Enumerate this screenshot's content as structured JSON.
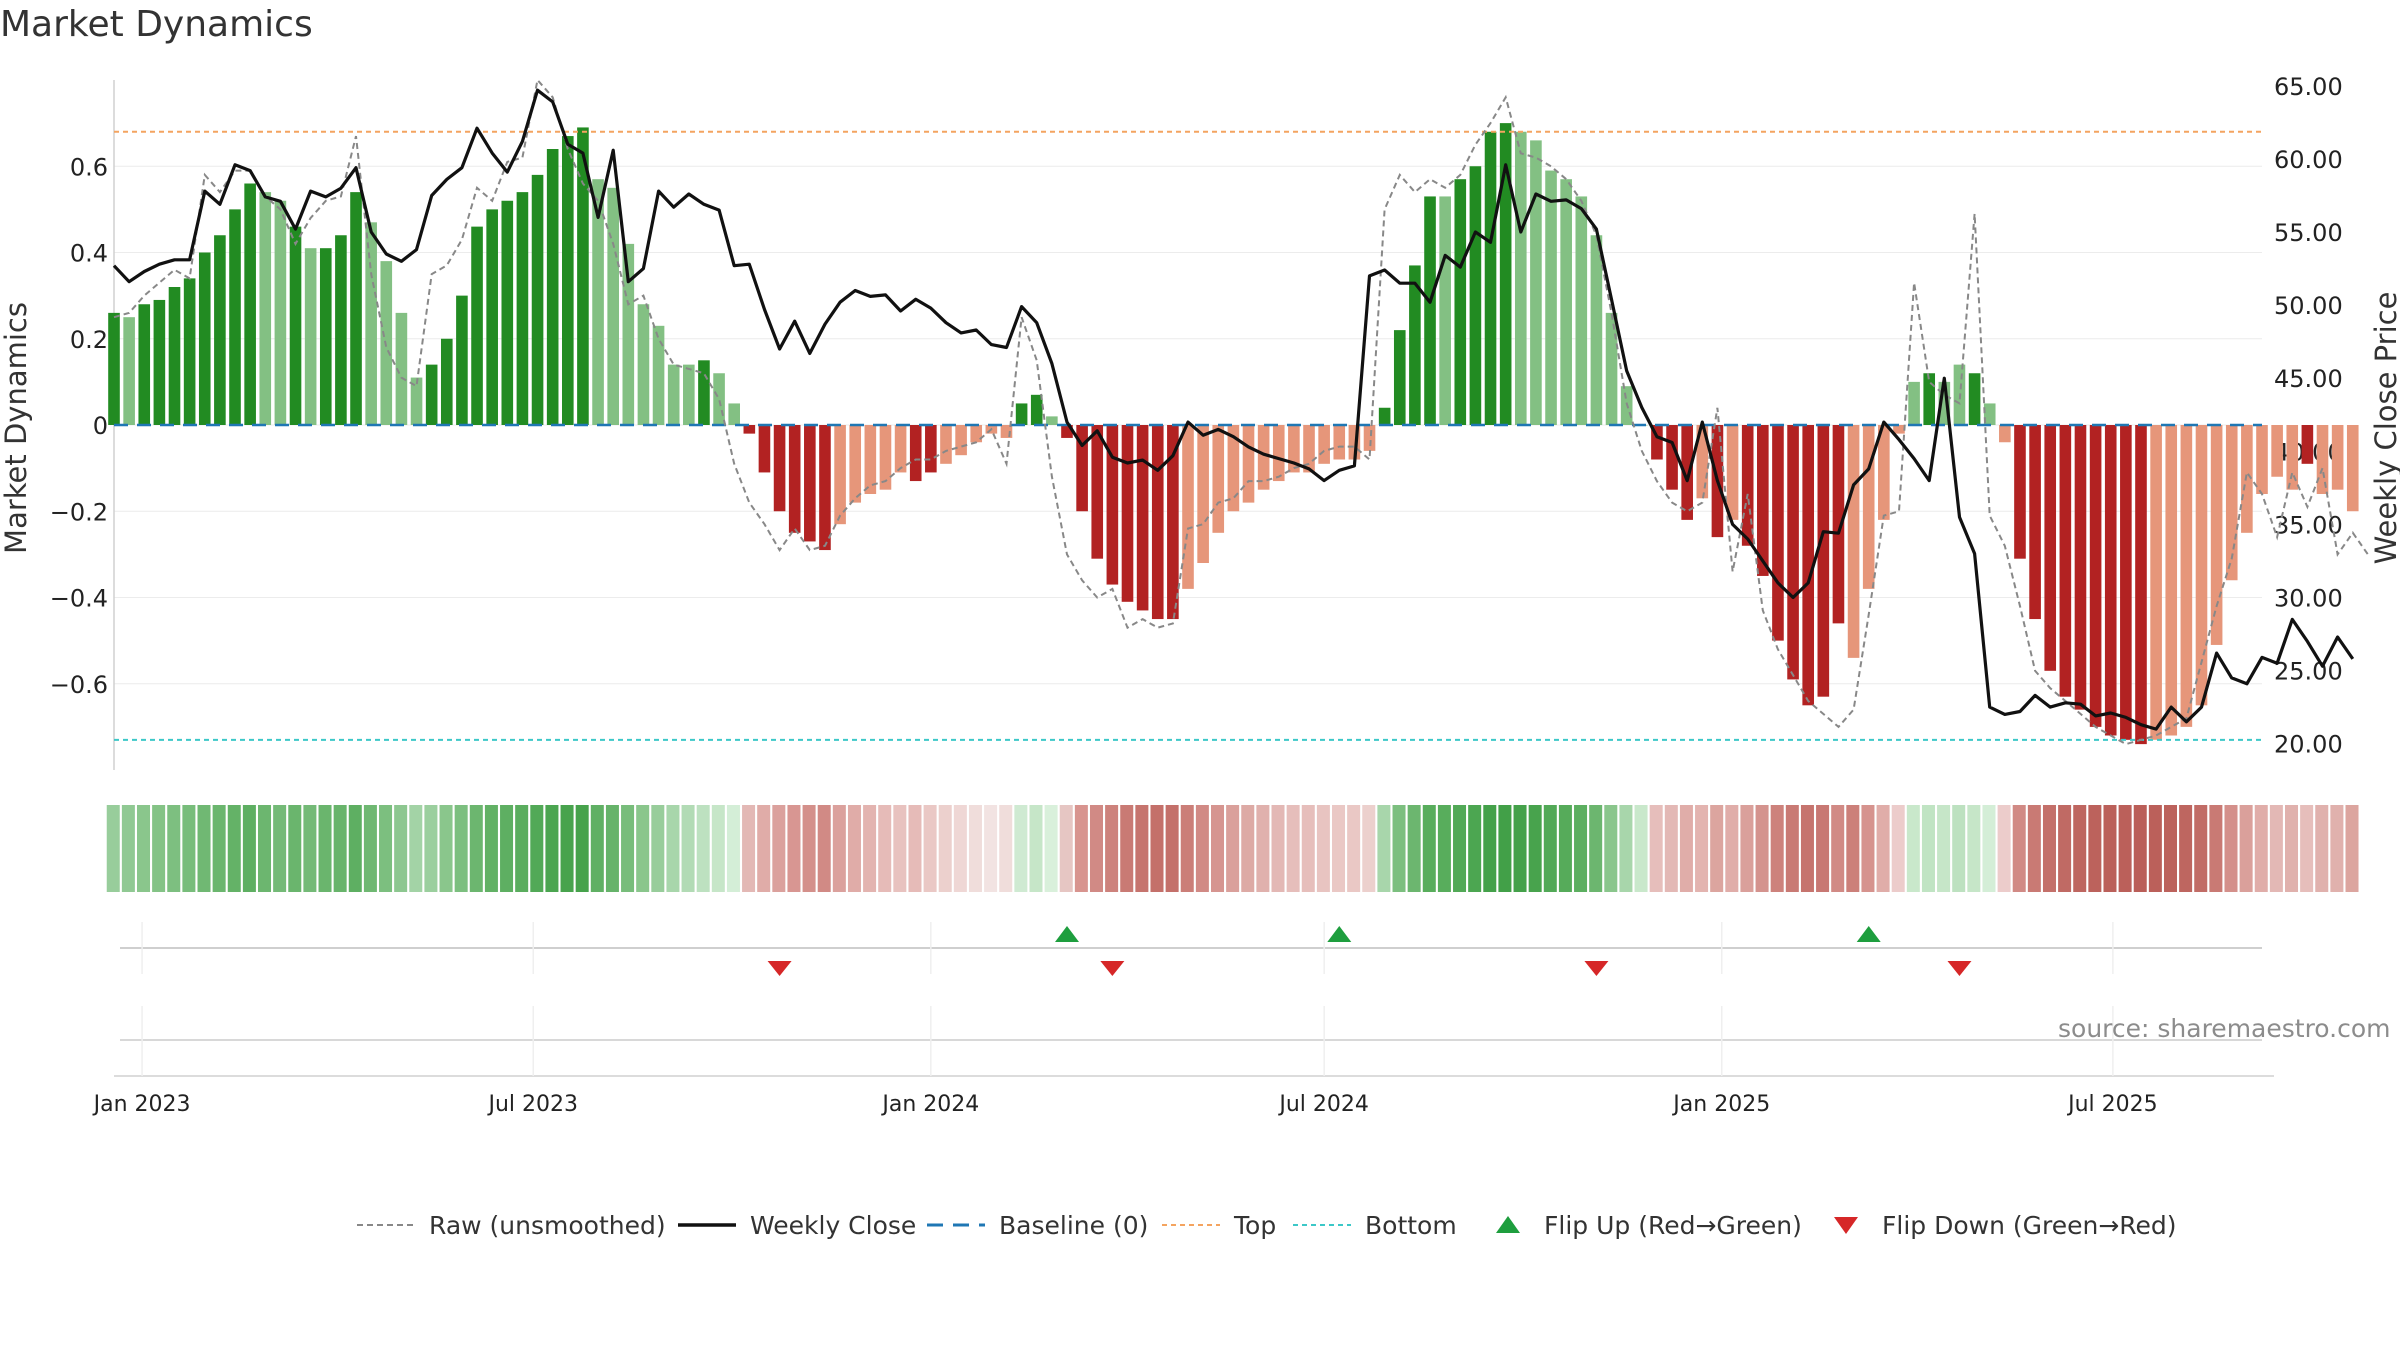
{
  "title": "Market Dynamics",
  "source": "source: sharemaestro.com",
  "colors": {
    "green_strong": "#228b22",
    "green_soft": "#83c083",
    "red_strong": "#b22222",
    "red_soft": "#e6967a",
    "close": "#111111",
    "raw": "#888888",
    "baseline": "#1f77b4",
    "top": "#f4a460",
    "bottom": "#3cc8c8",
    "flip_up": "#1e9e3e",
    "flip_down": "#d62728"
  },
  "chart_data": {
    "type": "bar",
    "title": "Market Dynamics",
    "ylabel": "Market Dynamics",
    "y2label": "Weekly Close Price",
    "ylim": [
      -0.8,
      0.8
    ],
    "y2lim": [
      18.2,
      65.4
    ],
    "yticks": [
      {
        "v": 0.6,
        "label": "0.6"
      },
      {
        "v": 0.4,
        "label": "0.4"
      },
      {
        "v": 0.2,
        "label": "0.2"
      },
      {
        "v": 0,
        "label": "0"
      },
      {
        "v": -0.2,
        "label": "−0.2"
      },
      {
        "v": -0.4,
        "label": "−0.4"
      },
      {
        "v": -0.6,
        "label": "−0.6"
      }
    ],
    "y2ticks": [
      {
        "v": 65,
        "label": "65.00"
      },
      {
        "v": 60,
        "label": "60.00"
      },
      {
        "v": 55,
        "label": "55.00"
      },
      {
        "v": 50,
        "label": "50.00"
      },
      {
        "v": 45,
        "label": "45.00"
      },
      {
        "v": 40,
        "label": "40.00"
      },
      {
        "v": 35,
        "label": "35.00"
      },
      {
        "v": 30,
        "label": "30.00"
      },
      {
        "v": 25,
        "label": "25.00"
      },
      {
        "v": 20,
        "label": "20.00"
      }
    ],
    "x_start": "2022-12-19",
    "x_end": "2025-09-08",
    "xticks": [
      {
        "date": "2023-01-01",
        "label": "Jan 2023"
      },
      {
        "date": "2023-07-01",
        "label": "Jul 2023"
      },
      {
        "date": "2024-01-01",
        "label": "Jan 2024"
      },
      {
        "date": "2024-07-01",
        "label": "Jul 2024"
      },
      {
        "date": "2025-01-01",
        "label": "Jan 2025"
      },
      {
        "date": "2025-07-01",
        "label": "Jul 2025"
      }
    ],
    "dynamics": [
      0.26,
      0.25,
      0.28,
      0.29,
      0.32,
      0.34,
      0.4,
      0.44,
      0.5,
      0.56,
      0.54,
      0.52,
      0.46,
      0.41,
      0.41,
      0.44,
      0.54,
      0.47,
      0.38,
      0.26,
      0.11,
      0.14,
      0.2,
      0.3,
      0.46,
      0.5,
      0.52,
      0.54,
      0.58,
      0.64,
      0.67,
      0.69,
      0.57,
      0.55,
      0.42,
      0.28,
      0.23,
      0.14,
      0.14,
      0.15,
      0.12,
      0.05,
      -0.02,
      -0.11,
      -0.2,
      -0.25,
      -0.27,
      -0.29,
      -0.23,
      -0.18,
      -0.16,
      -0.15,
      -0.11,
      -0.13,
      -0.11,
      -0.09,
      -0.07,
      -0.04,
      -0.02,
      -0.03,
      0.05,
      0.07,
      0.02,
      -0.03,
      -0.2,
      -0.31,
      -0.37,
      -0.41,
      -0.43,
      -0.45,
      -0.45,
      -0.38,
      -0.32,
      -0.25,
      -0.2,
      -0.18,
      -0.15,
      -0.13,
      -0.11,
      -0.11,
      -0.09,
      -0.08,
      -0.08,
      -0.06,
      0.04,
      0.22,
      0.37,
      0.53,
      0.53,
      0.57,
      0.6,
      0.68,
      0.7,
      0.68,
      0.66,
      0.59,
      0.57,
      0.53,
      0.44,
      0.26,
      0.09,
      0.0,
      -0.08,
      -0.15,
      -0.22,
      -0.17,
      -0.26,
      -0.22,
      -0.28,
      -0.35,
      -0.5,
      -0.59,
      -0.65,
      -0.63,
      -0.46,
      -0.54,
      -0.38,
      -0.22,
      -0.02,
      0.1,
      0.12,
      0.1,
      0.14,
      0.12,
      0.05,
      -0.04,
      -0.31,
      -0.45,
      -0.57,
      -0.63,
      -0.66,
      -0.7,
      -0.72,
      -0.73,
      -0.74,
      -0.73,
      -0.72,
      -0.7,
      -0.65,
      -0.51,
      -0.36,
      -0.25,
      -0.16,
      -0.12,
      -0.15,
      -0.09,
      -0.16,
      -0.15,
      -0.2
    ],
    "bar_strength": [
      "s",
      "w",
      "s",
      "s",
      "s",
      "s",
      "s",
      "s",
      "s",
      "s",
      "w",
      "w",
      "s",
      "w",
      "s",
      "s",
      "s",
      "w",
      "w",
      "w",
      "w",
      "s",
      "s",
      "s",
      "s",
      "s",
      "s",
      "s",
      "s",
      "s",
      "s",
      "s",
      "w",
      "w",
      "w",
      "w",
      "w",
      "w",
      "w",
      "s",
      "w",
      "w",
      "s",
      "s",
      "s",
      "s",
      "s",
      "s",
      "w",
      "w",
      "w",
      "w",
      "w",
      "s",
      "s",
      "w",
      "w",
      "w",
      "w",
      "w",
      "s",
      "s",
      "w",
      "s",
      "s",
      "s",
      "s",
      "s",
      "s",
      "s",
      "s",
      "w",
      "w",
      "w",
      "w",
      "w",
      "w",
      "w",
      "w",
      "w",
      "w",
      "w",
      "w",
      "w",
      "s",
      "s",
      "s",
      "s",
      "w",
      "s",
      "s",
      "s",
      "s",
      "w",
      "w",
      "w",
      "w",
      "w",
      "w",
      "w",
      "w",
      "w",
      "s",
      "s",
      "s",
      "w",
      "s",
      "w",
      "s",
      "s",
      "s",
      "s",
      "s",
      "s",
      "s",
      "w",
      "w",
      "w",
      "w",
      "w",
      "s",
      "w",
      "w",
      "s",
      "w",
      "w",
      "s",
      "s",
      "s",
      "s",
      "s",
      "s",
      "s",
      "s",
      "s",
      "w",
      "w",
      "w",
      "w",
      "w",
      "w",
      "w",
      "w",
      "w",
      "w",
      "s",
      "w",
      "w",
      "w",
      "s"
    ],
    "weekly_close": [
      52.7,
      51.6,
      52.3,
      52.8,
      53.1,
      53.1,
      57.8,
      56.9,
      59.6,
      59.2,
      57.4,
      57.1,
      55.2,
      57.8,
      57.4,
      58.0,
      59.4,
      55.0,
      53.5,
      53.0,
      53.8,
      57.5,
      58.6,
      59.4,
      62.1,
      60.4,
      59.1,
      61.2,
      64.7,
      63.9,
      61.0,
      60.4,
      56.0,
      60.6,
      51.6,
      52.5,
      57.8,
      56.7,
      57.6,
      56.9,
      56.5,
      52.7,
      52.8,
      49.7,
      47.0,
      48.9,
      46.7,
      48.7,
      50.2,
      51.0,
      50.6,
      50.7,
      49.6,
      50.4,
      49.8,
      48.8,
      48.1,
      48.3,
      47.3,
      47.1,
      49.9,
      48.8,
      46.0,
      42.0,
      40.4,
      41.4,
      39.6,
      39.2,
      39.4,
      38.7,
      39.7,
      42.0,
      41.1,
      41.5,
      41.0,
      40.3,
      39.8,
      39.5,
      39.2,
      38.8,
      38.0,
      38.7,
      39.0,
      52.0,
      52.4,
      51.5,
      51.5,
      50.2,
      53.4,
      52.6,
      55.0,
      54.3,
      59.6,
      55.0,
      57.6,
      57.1,
      57.2,
      56.6,
      55.2,
      50.4,
      45.5,
      43.0,
      41.0,
      40.6,
      38.0,
      42.0,
      38.0,
      35.0,
      34.0,
      32.5,
      31.0,
      30.0,
      31.0,
      34.5,
      34.4,
      37.7,
      38.8,
      42.0,
      40.8,
      39.5,
      38.0,
      45.0,
      35.5,
      33.0,
      22.5,
      22.0,
      22.2,
      23.3,
      22.5,
      22.8,
      22.7,
      21.9,
      22.1,
      21.8,
      21.3,
      21.0,
      22.5,
      21.5,
      22.5,
      26.2,
      24.5,
      24.1,
      25.9,
      25.5,
      28.5,
      27.0,
      25.3,
      27.3,
      25.8
    ],
    "raw": [
      0.25,
      0.26,
      0.3,
      0.33,
      0.36,
      0.34,
      0.58,
      0.54,
      0.59,
      0.59,
      0.53,
      0.5,
      0.42,
      0.48,
      0.52,
      0.53,
      0.67,
      0.35,
      0.18,
      0.11,
      0.09,
      0.35,
      0.37,
      0.43,
      0.55,
      0.52,
      0.61,
      0.62,
      0.8,
      0.76,
      0.64,
      0.56,
      0.52,
      0.42,
      0.28,
      0.3,
      0.2,
      0.14,
      0.13,
      0.12,
      0.06,
      -0.09,
      -0.18,
      -0.23,
      -0.29,
      -0.24,
      -0.29,
      -0.28,
      -0.21,
      -0.17,
      -0.14,
      -0.13,
      -0.1,
      -0.08,
      -0.08,
      -0.06,
      -0.05,
      -0.04,
      -0.01,
      -0.09,
      0.25,
      0.15,
      -0.12,
      -0.3,
      -0.36,
      -0.4,
      -0.38,
      -0.47,
      -0.45,
      -0.47,
      -0.46,
      -0.24,
      -0.23,
      -0.18,
      -0.17,
      -0.13,
      -0.13,
      -0.12,
      -0.1,
      -0.09,
      -0.06,
      -0.05,
      -0.05,
      -0.08,
      0.5,
      0.58,
      0.54,
      0.57,
      0.55,
      0.58,
      0.65,
      0.7,
      0.76,
      0.63,
      0.62,
      0.6,
      0.57,
      0.52,
      0.44,
      0.26,
      0.05,
      -0.06,
      -0.13,
      -0.18,
      -0.2,
      -0.18,
      0.04,
      -0.34,
      -0.16,
      -0.43,
      -0.52,
      -0.58,
      -0.64,
      -0.67,
      -0.7,
      -0.66,
      -0.44,
      -0.21,
      -0.2,
      0.33,
      0.1,
      0.07,
      0.05,
      0.49,
      -0.21,
      -0.28,
      -0.42,
      -0.57,
      -0.61,
      -0.64,
      -0.67,
      -0.7,
      -0.72,
      -0.74,
      -0.73,
      -0.72,
      -0.7,
      -0.68,
      -0.55,
      -0.42,
      -0.31,
      -0.11,
      -0.16,
      -0.26,
      -0.11,
      -0.19,
      -0.1,
      -0.3,
      -0.25,
      -0.3
    ],
    "baseline": 0,
    "top_line": 0.68,
    "bottom_line": -0.73,
    "flip_up_dates": [
      "2024-03-04",
      "2024-07-08",
      "2025-03-10"
    ],
    "flip_down_dates": [
      "2023-10-23",
      "2024-03-25",
      "2024-11-04",
      "2025-04-21"
    ],
    "regime_colors": [
      "#98cd9b",
      "#90c993",
      "#8ac68c",
      "#84c386",
      "#7dbf80",
      "#78bd7b",
      "#70b873",
      "#6bb66e",
      "#64b267",
      "#5eaf62",
      "#6cb66f",
      "#74ba77",
      "#6ab56d",
      "#74ba77",
      "#6ab56d",
      "#68b46b",
      "#5eaf62",
      "#6fb872",
      "#7cbf7f",
      "#8dc790",
      "#a3d3a6",
      "#9bcf9e",
      "#8ac68c",
      "#7cbf7f",
      "#6cb66f",
      "#62b165",
      "#5eaf62",
      "#5aad5e",
      "#52a957",
      "#4ba550",
      "#48a34d",
      "#46a24b",
      "#60b064",
      "#66b36a",
      "#78bd7b",
      "#8ac68c",
      "#98cd9b",
      "#a8d6ab",
      "#b2dbb5",
      "#bde1c0",
      "#c6e6c8",
      "#d4eed7",
      "#e3b8b5",
      "#e0aca8",
      "#dba19d",
      "#d89692",
      "#d4908b",
      "#d18a85",
      "#dba19d",
      "#e0aca8",
      "#e3b4b0",
      "#e6bbb8",
      "#e8c2bf",
      "#e6bbb8",
      "#eac8c5",
      "#ecd0cd",
      "#efd7d5",
      "#f0dddb",
      "#f2e3e2",
      "#f0dddb",
      "#cfead2",
      "#c6e6c8",
      "#d9f0db",
      "#e6c6c3",
      "#d8948f",
      "#d18a85",
      "#cd827c",
      "#c97a74",
      "#c6746e",
      "#c4706a",
      "#c4706a",
      "#cb7e78",
      "#d18a85",
      "#d69590",
      "#daa09b",
      "#ddaaa5",
      "#e0b1ad",
      "#e3b8b5",
      "#e6bebb",
      "#e6bebb",
      "#e8c4c1",
      "#eac8c5",
      "#eac8c5",
      "#ecd0cd",
      "#a8d6ab",
      "#7cbf7f",
      "#6cb66f",
      "#58ad5c",
      "#58ad5c",
      "#52a957",
      "#4ca651",
      "#44a14a",
      "#42a048",
      "#44a14a",
      "#48a34d",
      "#52a957",
      "#56ab5a",
      "#5caf60",
      "#6cb66f",
      "#8ac68c",
      "#a8d6ab",
      "#c9e8cb",
      "#e6bebb",
      "#e3b8b5",
      "#e0ada9",
      "#e3b4b0",
      "#dca59f",
      "#e0ada9",
      "#daa09b",
      "#d4938e",
      "#cd827c",
      "#c97a74",
      "#c6746e",
      "#c87873",
      "#d18a85",
      "#cc807a",
      "#d6938e",
      "#e0ada9",
      "#eccccb",
      "#c9e8cb",
      "#c0e4c3",
      "#c6e6c8",
      "#bde1c0",
      "#c6e6c8",
      "#d4eed7",
      "#eccccb",
      "#d18a85",
      "#c97a74",
      "#c4706a",
      "#c06a64",
      "#be6660",
      "#bc625c",
      "#bb605a",
      "#bb605a",
      "#ba5e58",
      "#bb605a",
      "#bc625c",
      "#be6660",
      "#c16c66",
      "#c97a74",
      "#d4908b",
      "#daa09b",
      "#e0ada9",
      "#e3b8b5",
      "#e0b1ad",
      "#e6bebb",
      "#e0b1ad",
      "#e0b1ad",
      "#dca59f"
    ]
  },
  "legend": [
    {
      "key": "raw",
      "label": "Raw (unsmoothed)"
    },
    {
      "key": "close",
      "label": "Weekly Close"
    },
    {
      "key": "baseline",
      "label": "Baseline (0)"
    },
    {
      "key": "top",
      "label": "Top"
    },
    {
      "key": "bottom",
      "label": "Bottom"
    },
    {
      "key": "flip_up",
      "label": "Flip Up (Red→Green)"
    },
    {
      "key": "flip_down",
      "label": "Flip Down (Green→Red)"
    }
  ]
}
